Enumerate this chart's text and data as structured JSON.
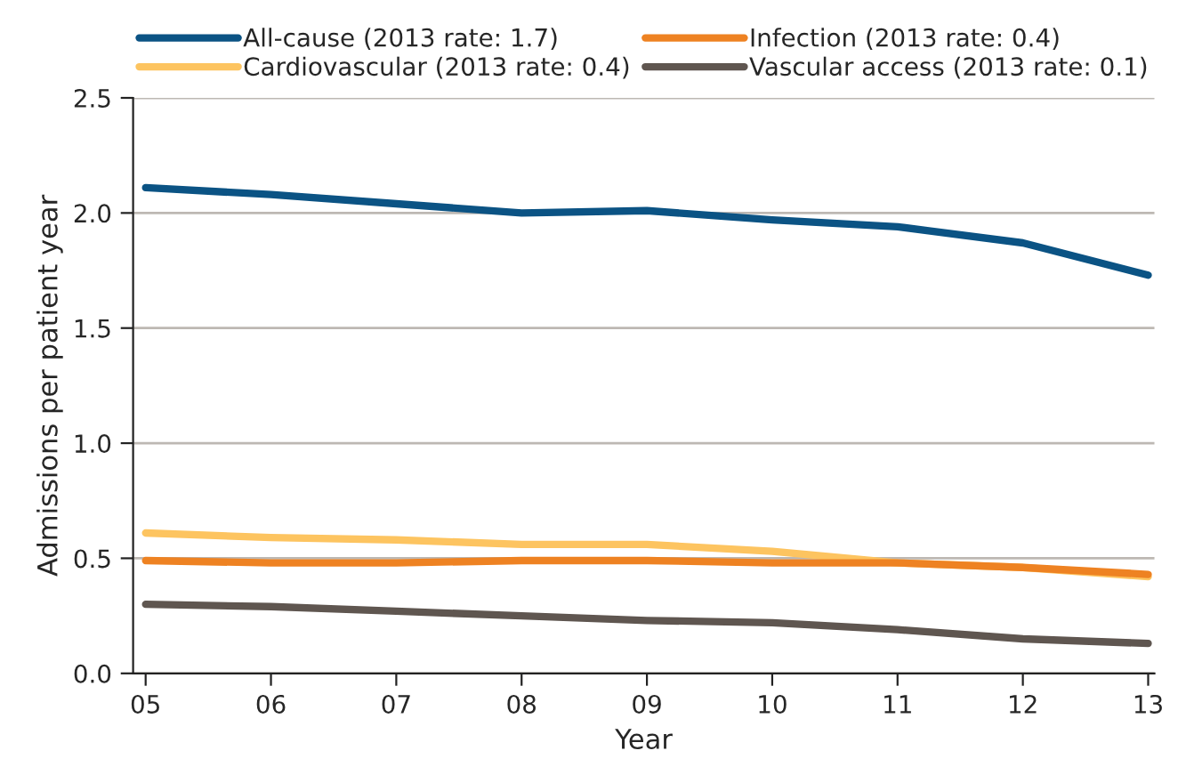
{
  "chart_data": {
    "type": "line",
    "xlabel": "Year",
    "ylabel": "Admissions per patient year",
    "x": [
      5,
      6,
      7,
      8,
      9,
      10,
      11,
      12,
      13
    ],
    "series": [
      {
        "name": "All-cause (2013 rate: 1.7)",
        "color": "#0b5384",
        "values": [
          2.11,
          2.08,
          2.04,
          2.0,
          2.01,
          1.97,
          1.94,
          1.87,
          1.73
        ]
      },
      {
        "name": "Cardiovascular (2013 rate: 0.4)",
        "color": "#fdc460",
        "values": [
          0.61,
          0.59,
          0.58,
          0.56,
          0.56,
          0.53,
          0.48,
          0.46,
          0.42
        ]
      },
      {
        "name": "Infection (2013 rate: 0.4)",
        "color": "#ee8222",
        "values": [
          0.49,
          0.48,
          0.48,
          0.49,
          0.49,
          0.48,
          0.48,
          0.46,
          0.43
        ]
      },
      {
        "name": "Vascular access (2013 rate: 0.1)",
        "color": "#5f5650",
        "values": [
          0.3,
          0.29,
          0.27,
          0.25,
          0.23,
          0.22,
          0.19,
          0.15,
          0.13
        ]
      }
    ],
    "xlim": [
      4.9,
      13.05
    ],
    "xticks": [
      {
        "value": 5,
        "label": "05"
      },
      {
        "value": 6,
        "label": "06"
      },
      {
        "value": 7,
        "label": "07"
      },
      {
        "value": 8,
        "label": "08"
      },
      {
        "value": 9,
        "label": "09"
      },
      {
        "value": 10,
        "label": "10"
      },
      {
        "value": 11,
        "label": "11"
      },
      {
        "value": 12,
        "label": "12"
      },
      {
        "value": 13,
        "label": "13"
      }
    ],
    "ylim": [
      0,
      2.5
    ],
    "yticks": [
      {
        "value": 0,
        "label": "0.0"
      },
      {
        "value": 0.5,
        "label": "0.5"
      },
      {
        "value": 1,
        "label": "1.0"
      },
      {
        "value": 1.5,
        "label": "1.5"
      },
      {
        "value": 2,
        "label": "2.0"
      },
      {
        "value": 2.5,
        "label": "2.5"
      }
    ],
    "grid": "y",
    "legend": "top",
    "line_style": "solid",
    "marker": "none"
  }
}
